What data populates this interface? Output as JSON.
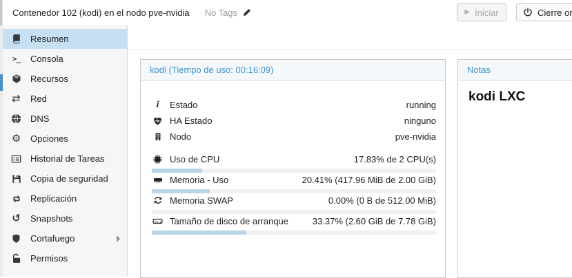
{
  "theme": {
    "colors": {
      "accent": "#3d94d1",
      "selected_bg": "#c6dff2",
      "sidebar_bg": "#f6f6f6",
      "panel_header_bg": "#f4f8fa",
      "bar_fill": "#b8d5ea",
      "bar_track": "#f1f1f1",
      "strip_blue": "#4a90c8"
    }
  },
  "header": {
    "title": "Contenedor 102 (kodi) en el nodo pve-nvidia",
    "tags_label": "No Tags",
    "tags_edit_icon": "pencil-icon",
    "buttons": {
      "start": {
        "label": "Iniciar",
        "icon": "play-icon",
        "disabled": true
      },
      "shutdown": {
        "label": "Cierre ordenado",
        "icon": "power-icon",
        "disabled": false
      }
    }
  },
  "sidebar": {
    "items": [
      {
        "label": "Resumen",
        "icon": "book-icon",
        "selected": true
      },
      {
        "label": "Consola",
        "icon": "terminal-icon"
      },
      {
        "label": "Recursos",
        "icon": "cube-icon"
      },
      {
        "label": "Red",
        "icon": "exchange-arrows-icon"
      },
      {
        "label": "DNS",
        "icon": "globe-icon"
      },
      {
        "label": "Opciones",
        "icon": "gear-icon"
      },
      {
        "label": "Historial de Tareas",
        "icon": "task-list-icon"
      },
      {
        "label": "Copia de seguridad",
        "icon": "floppy-icon"
      },
      {
        "label": "Replicación",
        "icon": "retweet-icon"
      },
      {
        "label": "Snapshots",
        "icon": "history-icon"
      },
      {
        "label": "Cortafuego",
        "icon": "shield-icon",
        "has_submenu": true
      },
      {
        "label": "Permisos",
        "icon": "unlock-icon"
      }
    ]
  },
  "status_panel": {
    "title": "kodi (Tiempo de uso: 00:16:09)",
    "rows": [
      {
        "icon": "info-icon",
        "label": "Estado",
        "value": "running"
      },
      {
        "icon": "heartbeat-icon",
        "label": "HA Estado",
        "value": "ninguno"
      },
      {
        "icon": "building-icon",
        "label": "Nodo",
        "value": "pve-nvidia"
      }
    ],
    "usage_rows": [
      {
        "icon": "cpu-icon",
        "label": "Uso de CPU",
        "value": "17.83% de 2 CPU(s)",
        "percent": 17.83
      },
      {
        "icon": "memory-icon",
        "label": "Memoria - Uso",
        "value": "20.41% (417.96 MiB de 2.00 GiB)",
        "percent": 20.41
      },
      {
        "icon": "swap-refresh-icon",
        "label": "Memoria SWAP",
        "value": "0.00% (0 B de 512.00 MiB)",
        "percent": 0
      },
      {
        "icon": "disk-icon",
        "label": "Tamaño de disco de arranque",
        "value": "33.37% (2.60 GiB de 7.78 GiB)",
        "percent": 33.37
      }
    ]
  },
  "notes_panel": {
    "title": "Notas",
    "content": "kodi LXC"
  }
}
